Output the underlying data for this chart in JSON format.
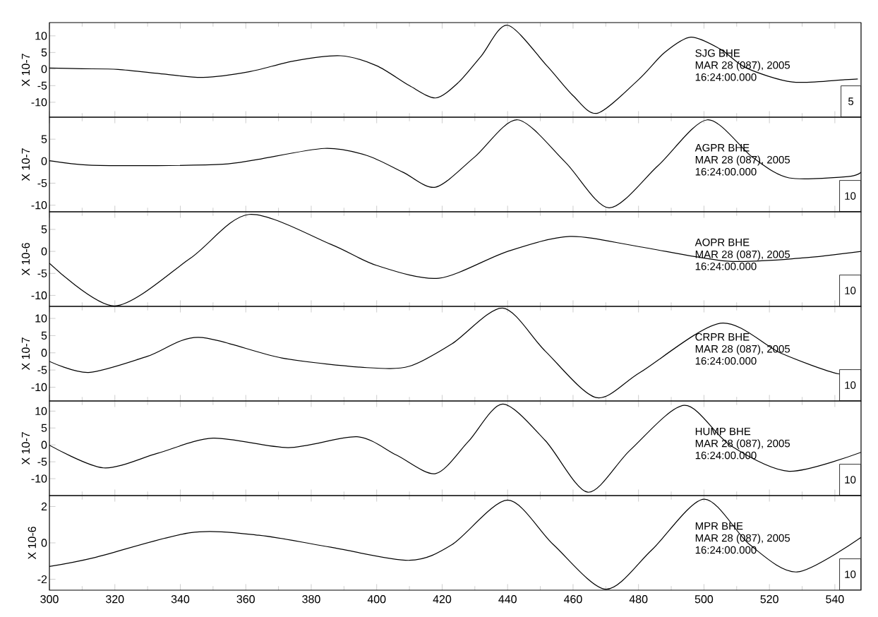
{
  "chart_data": [
    {
      "type": "line",
      "ylabel": "X 10-7",
      "color": "#000000",
      "xlim": [
        300,
        548
      ],
      "ylim": [
        -14.5,
        14
      ],
      "xticks": [
        300,
        320,
        340,
        360,
        380,
        400,
        420,
        440,
        460,
        480,
        500,
        520,
        540
      ],
      "yticks": [
        -10,
        -5,
        0,
        5,
        10
      ],
      "tick_labels": "y",
      "annotations": [
        "SJG   BHE",
        "MAR 28 (087), 2005",
        "16:24:00.000",
        "5"
      ],
      "x": [
        300,
        310,
        321,
        335,
        347,
        361,
        375,
        389,
        400,
        410,
        418,
        425,
        432,
        440,
        452,
        460,
        467.5,
        480,
        488,
        496,
        505,
        513,
        527,
        543,
        547
      ],
      "values": [
        0.3,
        0.1,
        -0.1,
        -1.5,
        -2.5,
        -0.8,
        2.5,
        4,
        1,
        -5,
        -8.7,
        -4,
        4,
        13.2,
        1,
        -8,
        -13.3,
        -3.2,
        5,
        9.6,
        6,
        0.3,
        -3.9,
        -3.2,
        -3
      ]
    },
    {
      "type": "line",
      "ylabel": "X 10-7",
      "color": "#000000",
      "xlim": [
        300,
        548
      ],
      "ylim": [
        -11.5,
        10
      ],
      "xticks": [
        300,
        320,
        340,
        360,
        380,
        400,
        420,
        440,
        460,
        480,
        500,
        520,
        540
      ],
      "yticks": [
        -10,
        -5,
        0,
        5
      ],
      "tick_labels": "y",
      "annotations": [
        "AGPR   BHE",
        "MAR 28 (087), 2005",
        "16:24:00.000",
        "10"
      ],
      "x": [
        300,
        312,
        333,
        353,
        363,
        384,
        397,
        408,
        418,
        430,
        443,
        457.6,
        471,
        486,
        501,
        515,
        526,
        544,
        548
      ],
      "values": [
        0.1,
        -0.9,
        -1,
        -0.7,
        0.3,
        2.9,
        1.3,
        -2.5,
        -5.9,
        1,
        9.4,
        -0.2,
        -10.6,
        -1,
        9.4,
        0.8,
        -3.8,
        -3.5,
        -2.5
      ]
    },
    {
      "type": "line",
      "ylabel": "X 10-6",
      "color": "#000000",
      "xlim": [
        300,
        548
      ],
      "ylim": [
        -12.5,
        9
      ],
      "xticks": [
        300,
        320,
        340,
        360,
        380,
        400,
        420,
        440,
        460,
        480,
        500,
        520,
        540
      ],
      "yticks": [
        -10,
        -5,
        0,
        5
      ],
      "tick_labels": "y",
      "annotations": [
        "AOPR   BHE",
        "MAR 28 (087), 2005",
        "16:24:00.000",
        "10"
      ],
      "x": [
        300,
        320,
        343,
        361,
        386,
        400,
        419,
        440,
        459,
        480,
        507,
        530,
        548
      ],
      "values": [
        -2.7,
        -12.4,
        -1.6,
        8.4,
        1.6,
        -3.2,
        -6.1,
        0,
        3.4,
        1.1,
        -2.2,
        -1.5,
        0
      ]
    },
    {
      "type": "line",
      "ylabel": "X 10-7",
      "color": "#000000",
      "xlim": [
        300,
        548
      ],
      "ylim": [
        -14,
        13.5
      ],
      "xticks": [
        300,
        320,
        340,
        360,
        380,
        400,
        420,
        440,
        460,
        480,
        500,
        520,
        540
      ],
      "yticks": [
        -10,
        -5,
        0,
        5,
        10
      ],
      "tick_labels": "y",
      "annotations": [
        "CRPR   BHE",
        "MAR 28 (087), 2005",
        "16:24:00.000",
        "10"
      ],
      "x": [
        300,
        312,
        330,
        345.5,
        371,
        397,
        410,
        423,
        438.5,
        451.5,
        467,
        480.5,
        505,
        523.5,
        541,
        548
      ],
      "values": [
        -2.5,
        -5.7,
        -1,
        4.5,
        -1.5,
        -4.3,
        -3.9,
        2.6,
        13,
        0.5,
        -13,
        -5.7,
        8.6,
        -0.1,
        -6.1,
        -5
      ]
    },
    {
      "type": "line",
      "ylabel": "X 10-7",
      "color": "#000000",
      "xlim": [
        300,
        548
      ],
      "ylim": [
        -15,
        13
      ],
      "xticks": [
        300,
        320,
        340,
        360,
        380,
        400,
        420,
        440,
        460,
        480,
        500,
        520,
        540
      ],
      "yticks": [
        -10,
        -5,
        0,
        5,
        10
      ],
      "tick_labels": "y",
      "annotations": [
        "HUMP   BHE",
        "MAR 28 (087), 2005",
        "16:24:00.000",
        "10"
      ],
      "x": [
        300,
        316.5,
        333,
        350,
        373,
        394,
        406,
        418,
        428,
        438.5,
        451.5,
        464.5,
        477.5,
        494,
        508,
        526,
        548
      ],
      "values": [
        -0.1,
        -6.8,
        -2.5,
        2,
        -0.8,
        2.4,
        -3,
        -8.5,
        1,
        12.1,
        1.3,
        -14,
        -1.5,
        11.7,
        -0.1,
        -7.8,
        -2.2
      ]
    },
    {
      "type": "line",
      "ylabel": "X 10-6",
      "color": "#000000",
      "xlim": [
        300,
        548
      ],
      "ylim": [
        -2.6,
        2.6
      ],
      "xticks": [
        300,
        320,
        340,
        360,
        380,
        400,
        420,
        440,
        460,
        480,
        500,
        520,
        540
      ],
      "yticks": [
        -2,
        0,
        2
      ],
      "annotations": [
        "MPR   BHE",
        "MAR 28 (087), 2005",
        "16:24:00.000",
        "10"
      ],
      "x": [
        300,
        314,
        343,
        364,
        386,
        410,
        423,
        440,
        454,
        470,
        484,
        500,
        514,
        528.5,
        548
      ],
      "values": [
        -1.3,
        -0.8,
        0.56,
        0.42,
        -0.24,
        -0.96,
        -0.1,
        2.35,
        -0.1,
        -2.55,
        -0.4,
        2.4,
        -0.1,
        -1.6,
        0.3
      ]
    }
  ]
}
